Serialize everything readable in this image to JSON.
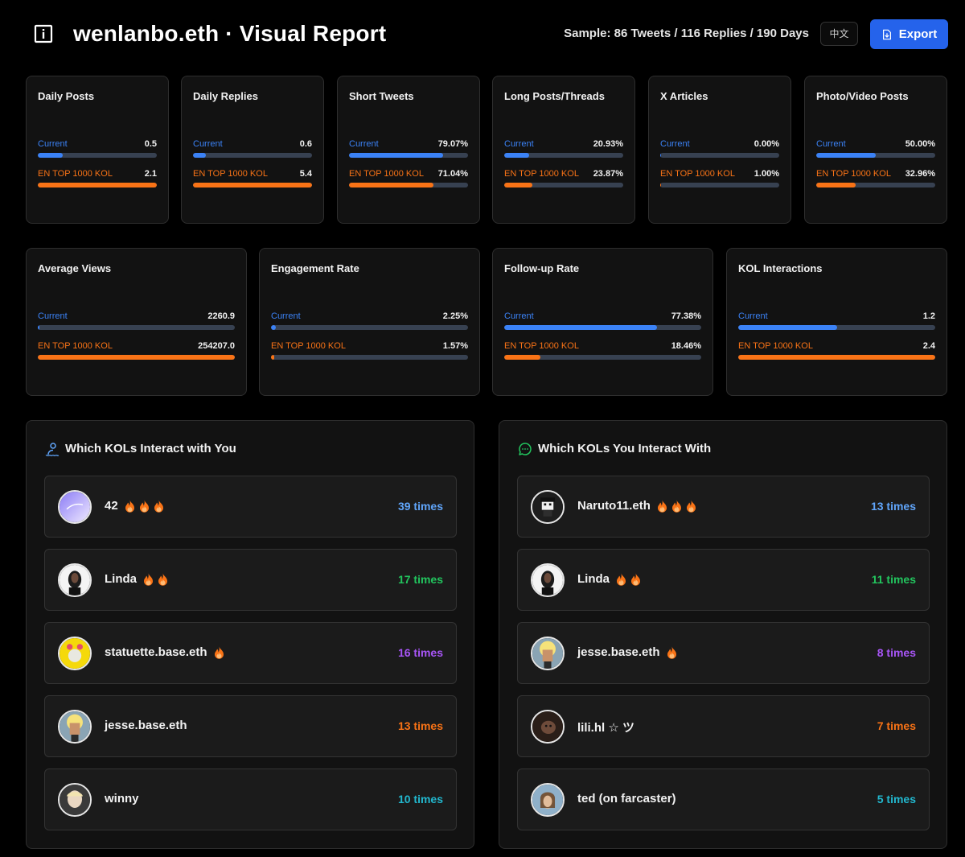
{
  "header": {
    "title": "wenlanbo.eth · Visual Report",
    "sample": "Sample: 86 Tweets / 116 Replies / 190 Days",
    "lang_label": "中文",
    "export_label": "Export"
  },
  "labels": {
    "current": "Current",
    "kol": "EN TOP 1000 KOL"
  },
  "metrics_row1": [
    {
      "title": "Daily Posts",
      "current": "0.5",
      "kol": "2.1",
      "current_pct": 21,
      "kol_pct": 100
    },
    {
      "title": "Daily Replies",
      "current": "0.6",
      "kol": "5.4",
      "current_pct": 11,
      "kol_pct": 100
    },
    {
      "title": "Short Tweets",
      "current": "79.07%",
      "kol": "71.04%",
      "current_pct": 79.07,
      "kol_pct": 71.04
    },
    {
      "title": "Long Posts/Threads",
      "current": "20.93%",
      "kol": "23.87%",
      "current_pct": 20.93,
      "kol_pct": 23.87
    },
    {
      "title": "X Articles",
      "current": "0.00%",
      "kol": "1.00%",
      "current_pct": 0,
      "kol_pct": 1
    },
    {
      "title": "Photo/Video Posts",
      "current": "50.00%",
      "kol": "32.96%",
      "current_pct": 50,
      "kol_pct": 32.96
    }
  ],
  "metrics_row2": [
    {
      "title": "Average Views",
      "current": "2260.9",
      "kol": "254207.0",
      "current_pct": 0.9,
      "kol_pct": 100
    },
    {
      "title": "Engagement Rate",
      "current": "2.25%",
      "kol": "1.57%",
      "current_pct": 2.25,
      "kol_pct": 1.57
    },
    {
      "title": "Follow-up Rate",
      "current": "77.38%",
      "kol": "18.46%",
      "current_pct": 77.38,
      "kol_pct": 18.46
    },
    {
      "title": "KOL Interactions",
      "current": "1.2",
      "kol": "2.4",
      "current_pct": 50,
      "kol_pct": 100
    }
  ],
  "panel_left": {
    "title": "Which KOLs Interact with You",
    "items": [
      {
        "name": "42",
        "flames": 3,
        "times": "39 times",
        "color": "#60a5fa"
      },
      {
        "name": "Linda",
        "flames": 2,
        "times": "17 times",
        "color": "#22c55e"
      },
      {
        "name": "statuette.base.eth",
        "flames": 1,
        "times": "16 times",
        "color": "#a855f7"
      },
      {
        "name": "jesse.base.eth",
        "flames": 0,
        "times": "13 times",
        "color": "#f97316"
      },
      {
        "name": "winny",
        "flames": 0,
        "times": "10 times",
        "color": "#22b8cf"
      }
    ]
  },
  "panel_right": {
    "title": "Which KOLs You Interact With",
    "items": [
      {
        "name": "Naruto11.eth",
        "flames": 3,
        "times": "13 times",
        "color": "#60a5fa"
      },
      {
        "name": "Linda",
        "flames": 2,
        "times": "11 times",
        "color": "#22c55e"
      },
      {
        "name": "jesse.base.eth",
        "flames": 1,
        "times": "8 times",
        "color": "#a855f7"
      },
      {
        "name": "lili.hl ☆ ツ",
        "flames": 0,
        "times": "7 times",
        "color": "#f97316"
      },
      {
        "name": "ted (on farcaster)",
        "flames": 0,
        "times": "5 times",
        "color": "#22b8cf"
      }
    ]
  }
}
